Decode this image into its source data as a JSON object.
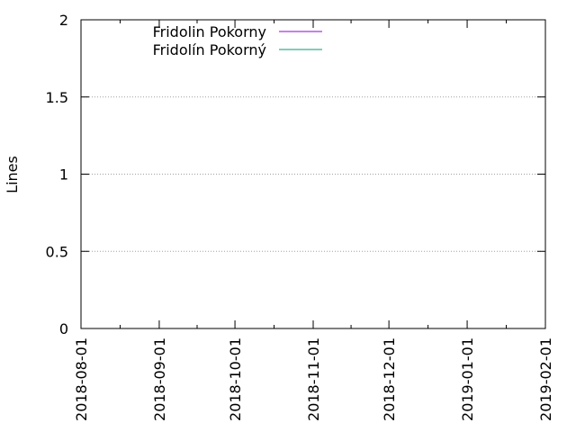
{
  "chart_data": {
    "type": "line",
    "title": "",
    "xlabel": "",
    "ylabel": "Lines",
    "x_ticks": [
      "2018-08-01",
      "2018-09-01",
      "2018-10-01",
      "2018-11-01",
      "2018-12-01",
      "2019-01-01",
      "2019-02-01"
    ],
    "xlim": [
      "2018-08-01",
      "2019-02-01"
    ],
    "y_ticks": [
      "0",
      "0.5",
      "1",
      "1.5",
      "2"
    ],
    "ylim": [
      0,
      2
    ],
    "grid": "horizontal dotted",
    "legend_position": "top-left",
    "series": [
      {
        "name": "Fridolin Pokorny",
        "color": "#9400d3",
        "values": []
      },
      {
        "name": "Fridolín Pokorný",
        "color": "#009e73",
        "values": []
      }
    ]
  }
}
